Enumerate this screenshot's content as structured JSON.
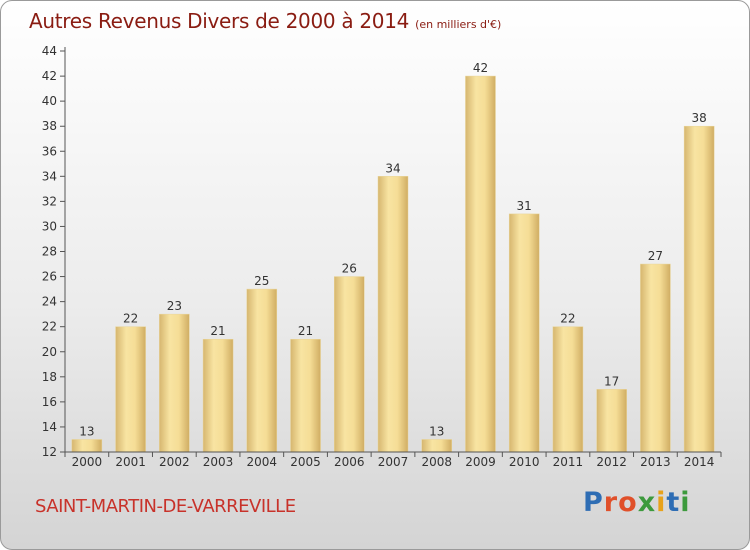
{
  "header": {
    "title": "Autres Revenus Divers de 2000 à 2014",
    "subtitle": "(en milliers d'€)"
  },
  "footer": {
    "town": "SAINT-MARTIN-DE-VARREVILLE",
    "logo_text": "Proxiti"
  },
  "colors": {
    "title": "#8a1c12",
    "town": "#c8322a",
    "bar_light": "#f8e4a2",
    "bar_dark": "#d4b46c",
    "axis": "#555555"
  },
  "chart_data": {
    "type": "bar",
    "title": "Autres Revenus Divers de 2000 à 2014",
    "subtitle": "(en milliers d'€)",
    "xlabel": "",
    "ylabel": "",
    "categories": [
      "2000",
      "2001",
      "2002",
      "2003",
      "2004",
      "2005",
      "2006",
      "2007",
      "2008",
      "2009",
      "2010",
      "2011",
      "2012",
      "2013",
      "2014"
    ],
    "values": [
      13,
      22,
      23,
      21,
      25,
      21,
      26,
      34,
      13,
      42,
      31,
      22,
      17,
      27,
      38
    ],
    "ylim": [
      12,
      44
    ],
    "yticks": [
      12,
      14,
      16,
      18,
      20,
      22,
      24,
      26,
      28,
      30,
      32,
      34,
      36,
      38,
      40,
      42,
      44
    ],
    "grid": false,
    "legend": "none"
  }
}
